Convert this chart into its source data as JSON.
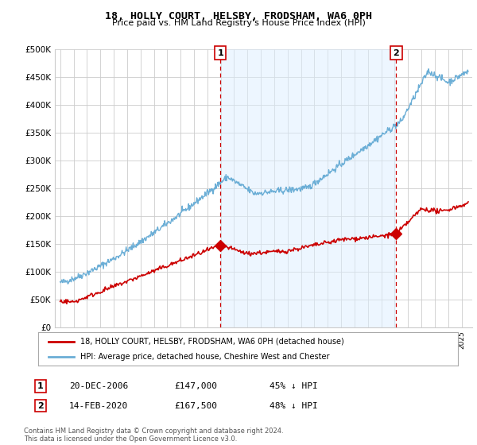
{
  "title": "18, HOLLY COURT, HELSBY, FRODSHAM, WA6 0PH",
  "subtitle": "Price paid vs. HM Land Registry's House Price Index (HPI)",
  "ylim": [
    0,
    500000
  ],
  "yticks": [
    0,
    50000,
    100000,
    150000,
    200000,
    250000,
    300000,
    350000,
    400000,
    450000,
    500000
  ],
  "ytick_labels": [
    "£0",
    "£50K",
    "£100K",
    "£150K",
    "£200K",
    "£250K",
    "£300K",
    "£350K",
    "£400K",
    "£450K",
    "£500K"
  ],
  "hpi_color": "#6baed6",
  "price_color": "#cc0000",
  "vline_color": "#cc0000",
  "fill_color": "#ddeeff",
  "background_color": "#ffffff",
  "grid_color": "#cccccc",
  "sale1_date": 2006.97,
  "sale1_price": 147000,
  "sale2_date": 2020.12,
  "sale2_price": 167500,
  "legend_property": "18, HOLLY COURT, HELSBY, FRODSHAM, WA6 0PH (detached house)",
  "legend_hpi": "HPI: Average price, detached house, Cheshire West and Chester",
  "footnote": "Contains HM Land Registry data © Crown copyright and database right 2024.\nThis data is licensed under the Open Government Licence v3.0."
}
